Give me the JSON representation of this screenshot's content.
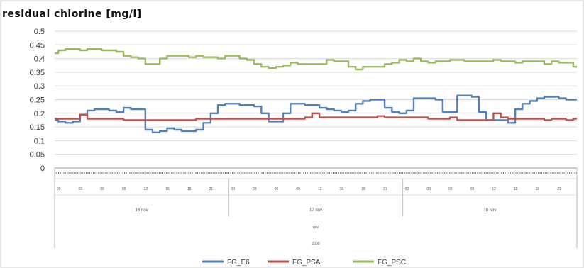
{
  "chart_data": {
    "type": "line",
    "title": "residual chlorine [mg/l]",
    "ylim": [
      0,
      0.5
    ],
    "yticks": [
      "0",
      "0.05",
      "0.1",
      "0.15",
      "0.2",
      "0.25",
      "0.3",
      "0.35",
      "0.4",
      "0.45",
      "0.5"
    ],
    "grid": "horizontal",
    "x_hours": [
      "00",
      "03",
      "06",
      "09",
      "12",
      "15",
      "18",
      "21",
      "00",
      "03",
      "06",
      "09",
      "12",
      "15",
      "18",
      "21",
      "00",
      "03",
      "06",
      "09",
      "12",
      "15",
      "18",
      "21"
    ],
    "x_minutes_label": "00",
    "x_days": [
      "16 nov",
      "17 nov",
      "18 nov"
    ],
    "x_month": "nov",
    "x_year": "2000",
    "legend_position": "bottom",
    "x": [
      0,
      1,
      2,
      3,
      4,
      5,
      6,
      7,
      8,
      9,
      10,
      11,
      12,
      13,
      14,
      15,
      16,
      17,
      18,
      19,
      20,
      21,
      22,
      23,
      24,
      25,
      26,
      27,
      28,
      29,
      30,
      31,
      32,
      33,
      34,
      35,
      36,
      37,
      38,
      39,
      40,
      41,
      42,
      43,
      44,
      45,
      46,
      47,
      48,
      49,
      50,
      51,
      52,
      53,
      54,
      55,
      56,
      57,
      58,
      59,
      60,
      61,
      62,
      63,
      64,
      65,
      66,
      67,
      68,
      69,
      70,
      71,
      72
    ],
    "series": [
      {
        "name": "FG_E6",
        "color": "#4f81bd",
        "values": [
          0.175,
          0.17,
          0.165,
          0.17,
          0.195,
          0.21,
          0.215,
          0.215,
          0.21,
          0.205,
          0.22,
          0.215,
          0.215,
          0.14,
          0.13,
          0.135,
          0.145,
          0.14,
          0.135,
          0.135,
          0.14,
          0.165,
          0.2,
          0.23,
          0.235,
          0.235,
          0.23,
          0.23,
          0.225,
          0.2,
          0.17,
          0.17,
          0.2,
          0.235,
          0.235,
          0.23,
          0.23,
          0.22,
          0.215,
          0.21,
          0.205,
          0.21,
          0.235,
          0.245,
          0.25,
          0.25,
          0.22,
          0.205,
          0.2,
          0.21,
          0.255,
          0.255,
          0.255,
          0.25,
          0.205,
          0.205,
          0.265,
          0.265,
          0.26,
          0.205,
          0.175,
          0.175,
          0.175,
          0.165,
          0.215,
          0.235,
          0.245,
          0.255,
          0.26,
          0.26,
          0.255,
          0.25,
          0.25
        ]
      },
      {
        "name": "FG_PSA",
        "color": "#c0504d",
        "values": [
          0.18,
          0.18,
          0.18,
          0.18,
          0.195,
          0.18,
          0.18,
          0.18,
          0.18,
          0.18,
          0.175,
          0.175,
          0.175,
          0.175,
          0.175,
          0.175,
          0.175,
          0.175,
          0.175,
          0.175,
          0.18,
          0.18,
          0.18,
          0.18,
          0.18,
          0.18,
          0.18,
          0.18,
          0.18,
          0.18,
          0.18,
          0.18,
          0.18,
          0.18,
          0.18,
          0.185,
          0.2,
          0.185,
          0.185,
          0.185,
          0.185,
          0.185,
          0.185,
          0.185,
          0.185,
          0.19,
          0.185,
          0.185,
          0.185,
          0.185,
          0.185,
          0.185,
          0.18,
          0.18,
          0.18,
          0.185,
          0.175,
          0.175,
          0.175,
          0.175,
          0.175,
          0.2,
          0.185,
          0.18,
          0.18,
          0.18,
          0.18,
          0.18,
          0.175,
          0.18,
          0.18,
          0.175,
          0.18
        ]
      },
      {
        "name": "FG_PSC",
        "color": "#9bbb59",
        "values": [
          0.42,
          0.43,
          0.435,
          0.435,
          0.43,
          0.435,
          0.435,
          0.43,
          0.43,
          0.425,
          0.41,
          0.405,
          0.4,
          0.38,
          0.38,
          0.4,
          0.41,
          0.41,
          0.41,
          0.405,
          0.41,
          0.405,
          0.405,
          0.4,
          0.41,
          0.41,
          0.4,
          0.395,
          0.38,
          0.37,
          0.365,
          0.37,
          0.375,
          0.385,
          0.38,
          0.38,
          0.38,
          0.38,
          0.395,
          0.39,
          0.39,
          0.37,
          0.36,
          0.37,
          0.37,
          0.37,
          0.38,
          0.385,
          0.395,
          0.39,
          0.4,
          0.39,
          0.385,
          0.39,
          0.39,
          0.395,
          0.395,
          0.39,
          0.39,
          0.39,
          0.39,
          0.395,
          0.39,
          0.39,
          0.385,
          0.39,
          0.39,
          0.39,
          0.38,
          0.39,
          0.385,
          0.385,
          0.37
        ]
      }
    ]
  }
}
